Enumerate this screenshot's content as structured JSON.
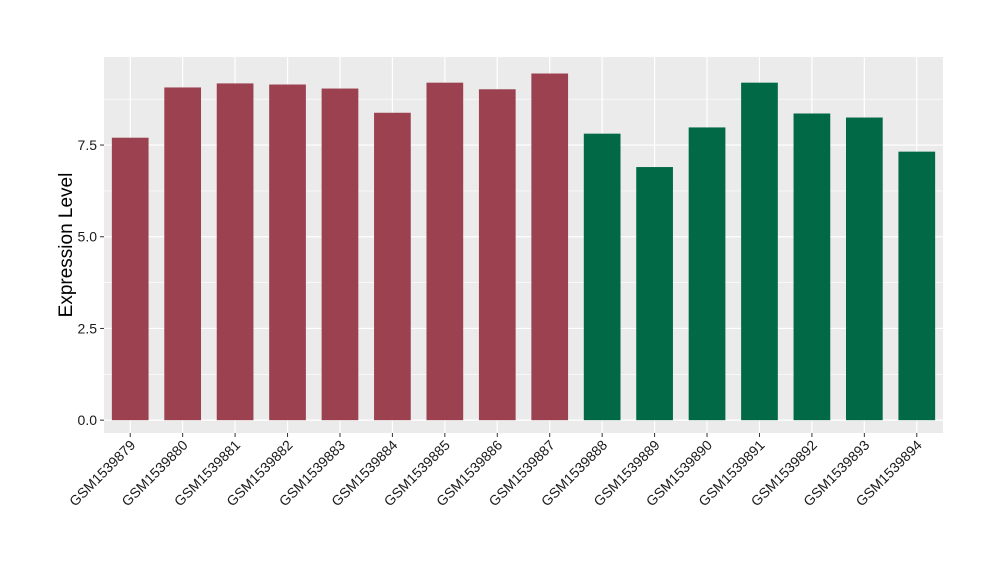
{
  "chart_data": {
    "type": "bar",
    "title": "",
    "xlabel": "",
    "ylabel": "Expression Level",
    "ylim": [
      -0.35,
      9.9
    ],
    "yticks": [
      0.0,
      2.5,
      5.0,
      7.5
    ],
    "ytick_labels": [
      "0.0",
      "2.5",
      "5.0",
      "7.5"
    ],
    "grid": true,
    "panel_background": "#ebebeb",
    "grid_color": "#ffffff",
    "categories": [
      "GSM1539879",
      "GSM1539880",
      "GSM1539881",
      "GSM1539882",
      "GSM1539883",
      "GSM1539884",
      "GSM1539885",
      "GSM1539886",
      "GSM1539887",
      "GSM1539888",
      "GSM1539889",
      "GSM1539890",
      "GSM1539891",
      "GSM1539892",
      "GSM1539893",
      "GSM1539894"
    ],
    "values": [
      7.7,
      9.07,
      9.18,
      9.15,
      9.04,
      8.38,
      9.2,
      9.02,
      9.45,
      7.81,
      6.9,
      7.98,
      9.2,
      8.36,
      8.25,
      7.32
    ],
    "bar_colors": [
      "#9b4150",
      "#9b4150",
      "#9b4150",
      "#9b4150",
      "#9b4150",
      "#9b4150",
      "#9b4150",
      "#9b4150",
      "#9b4150",
      "#016946",
      "#016946",
      "#016946",
      "#016946",
      "#016946",
      "#016946",
      "#016946"
    ]
  }
}
